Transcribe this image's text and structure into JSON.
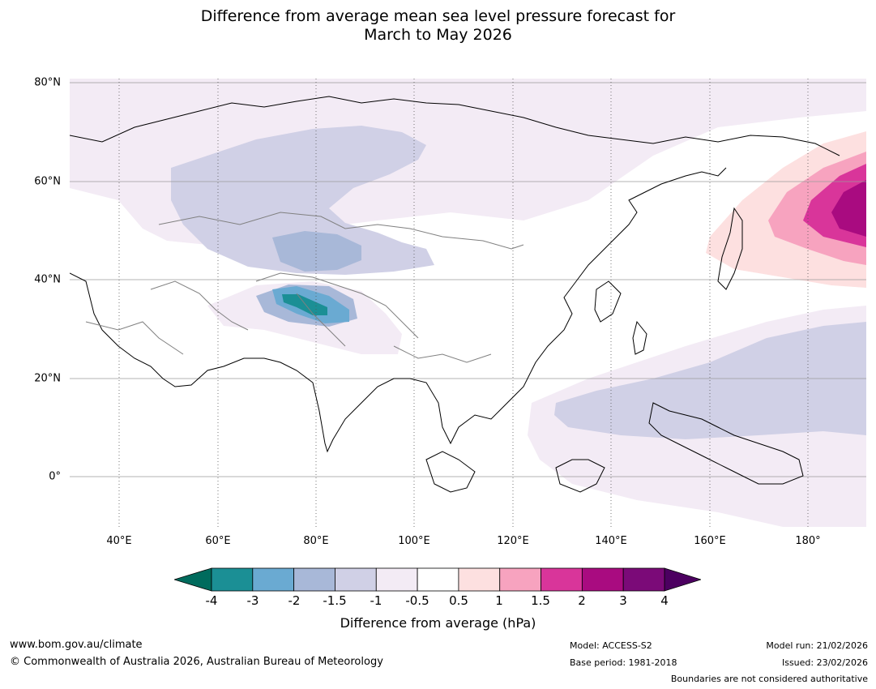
{
  "title_line1": "Difference from average mean sea level pressure forecast for",
  "title_line2": "March to May 2026",
  "lat_labels": [
    {
      "text": "80°N",
      "lat": 80
    },
    {
      "text": "60°N",
      "lat": 60
    },
    {
      "text": "40°N",
      "lat": 40
    },
    {
      "text": "20°N",
      "lat": 20
    },
    {
      "text": "0°",
      "lat": 0
    }
  ],
  "lon_labels": [
    {
      "text": "40°E",
      "lon": 40
    },
    {
      "text": "60°E",
      "lon": 60
    },
    {
      "text": "80°E",
      "lon": 80
    },
    {
      "text": "100°E",
      "lon": 100
    },
    {
      "text": "120°E",
      "lon": 120
    },
    {
      "text": "140°E",
      "lon": 140
    },
    {
      "text": "160°E",
      "lon": 160
    },
    {
      "text": "180°",
      "lon": 180
    }
  ],
  "colorbar": {
    "label": "Difference from average (hPa)",
    "ticks": [
      "-4",
      "-3",
      "-2",
      "-1.5",
      "-1",
      "-0.5",
      "0.5",
      "1",
      "1.5",
      "2",
      "3",
      "4"
    ],
    "colors": [
      "#1b8f95",
      "#6aaad2",
      "#a8b8d8",
      "#d0d0e6",
      "#f3ebf5",
      "#ffffff",
      "#fde0e0",
      "#f7a3bf",
      "#d9359a",
      "#a90b80",
      "#7b0a78"
    ],
    "under_color": "#006b5d",
    "over_color": "#4c0060"
  },
  "footer": {
    "website": "www.bom.gov.au/climate",
    "copyright": "© Commonwealth of Australia 2026, Australian Bureau of Meteorology",
    "model": "Model: ACCESS-S2",
    "base_period": "Base period: 1981-2018",
    "model_run": "Model run: 21/02/2026",
    "issued": "Issued: 23/02/2026",
    "disclaimer": "Boundaries are not considered authoritative"
  }
}
